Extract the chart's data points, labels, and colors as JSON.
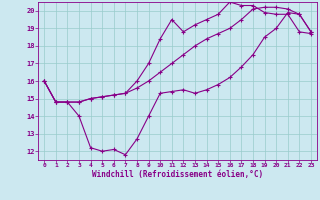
{
  "xlabel": "Windchill (Refroidissement éolien,°C)",
  "background_color": "#cce8f0",
  "line_color": "#880088",
  "grid_color": "#99cccc",
  "xlim": [
    -0.5,
    23.5
  ],
  "ylim": [
    11.5,
    20.5
  ],
  "yticks": [
    12,
    13,
    14,
    15,
    16,
    17,
    18,
    19,
    20
  ],
  "xticks": [
    0,
    1,
    2,
    3,
    4,
    5,
    6,
    7,
    8,
    9,
    10,
    11,
    12,
    13,
    14,
    15,
    16,
    17,
    18,
    19,
    20,
    21,
    22,
    23
  ],
  "hours": [
    0,
    1,
    2,
    3,
    4,
    5,
    6,
    7,
    8,
    9,
    10,
    11,
    12,
    13,
    14,
    15,
    16,
    17,
    18,
    19,
    20,
    21,
    22,
    23
  ],
  "line1": [
    16.0,
    14.8,
    14.8,
    14.0,
    12.2,
    12.0,
    12.1,
    11.8,
    12.7,
    14.0,
    15.3,
    15.4,
    15.5,
    15.3,
    15.5,
    15.8,
    16.2,
    16.8,
    17.5,
    18.5,
    19.0,
    19.9,
    19.8,
    18.8
  ],
  "line2": [
    16.0,
    14.8,
    14.8,
    14.8,
    15.0,
    15.1,
    15.2,
    15.3,
    15.6,
    16.0,
    16.5,
    17.0,
    17.5,
    18.0,
    18.4,
    18.7,
    19.0,
    19.5,
    20.1,
    20.2,
    20.2,
    20.1,
    19.8,
    18.8
  ],
  "line3": [
    16.0,
    14.8,
    14.8,
    14.8,
    15.0,
    15.1,
    15.2,
    15.3,
    16.0,
    17.0,
    18.4,
    19.5,
    18.8,
    19.2,
    19.5,
    19.8,
    20.5,
    20.3,
    20.3,
    19.9,
    19.8,
    19.8,
    18.8,
    18.7
  ]
}
